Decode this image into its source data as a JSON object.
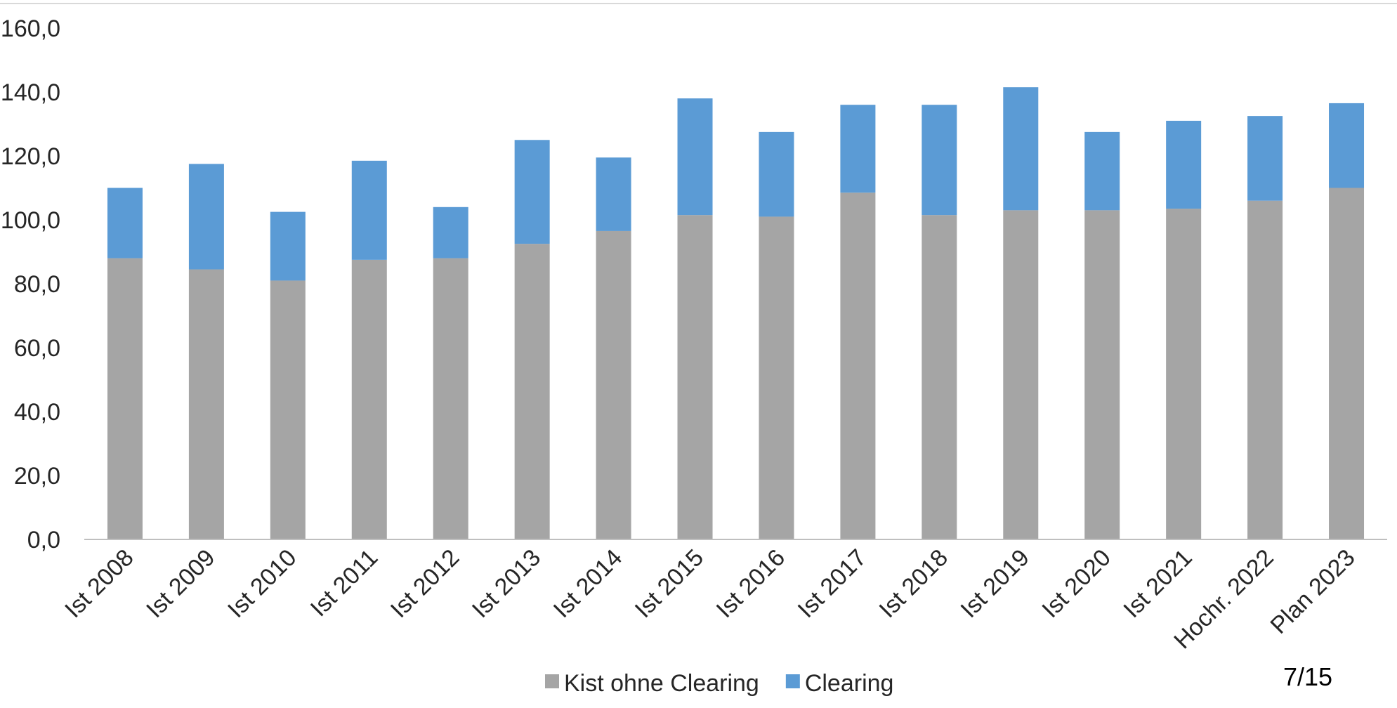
{
  "page": {
    "page_number": "7/15"
  },
  "colors": {
    "Kist ohne Clearing": "#a5a5a5",
    "Clearing": "#5b9bd5",
    "axis": "#bfbfbf",
    "top_rule": "#d9d9d9"
  },
  "chart_data": {
    "type": "bar",
    "stacked": true,
    "title": "",
    "xlabel": "",
    "ylabel": "",
    "categories": [
      "Ist 2008",
      "Ist 2009",
      "Ist 2010",
      "Ist 2011",
      "Ist 2012",
      "Ist 2013",
      "Ist 2014",
      "Ist 2015",
      "Ist 2016",
      "Ist 2017",
      "Ist 2018",
      "Ist 2019",
      "Ist 2020",
      "Ist 2021",
      "Hochr. 2022",
      "Plan 2023"
    ],
    "series": [
      {
        "name": "Kist ohne Clearing",
        "values": [
          88.0,
          84.5,
          81.0,
          87.5,
          88.0,
          92.5,
          96.5,
          101.5,
          101.0,
          108.5,
          101.5,
          103.0,
          103.0,
          103.5,
          106.0,
          110.0
        ]
      },
      {
        "name": "Clearing",
        "values": [
          22.0,
          33.0,
          21.5,
          31.0,
          16.0,
          32.5,
          23.0,
          36.5,
          26.5,
          27.5,
          34.5,
          38.5,
          24.5,
          27.5,
          26.5,
          26.5
        ]
      }
    ],
    "ylim": [
      0,
      160
    ],
    "yticks": [
      "0,0",
      "20,0",
      "40,0",
      "60,0",
      "80,0",
      "100,0",
      "120,0",
      "140,0",
      "160,0"
    ],
    "grid": false,
    "legend": "bottom-center"
  }
}
